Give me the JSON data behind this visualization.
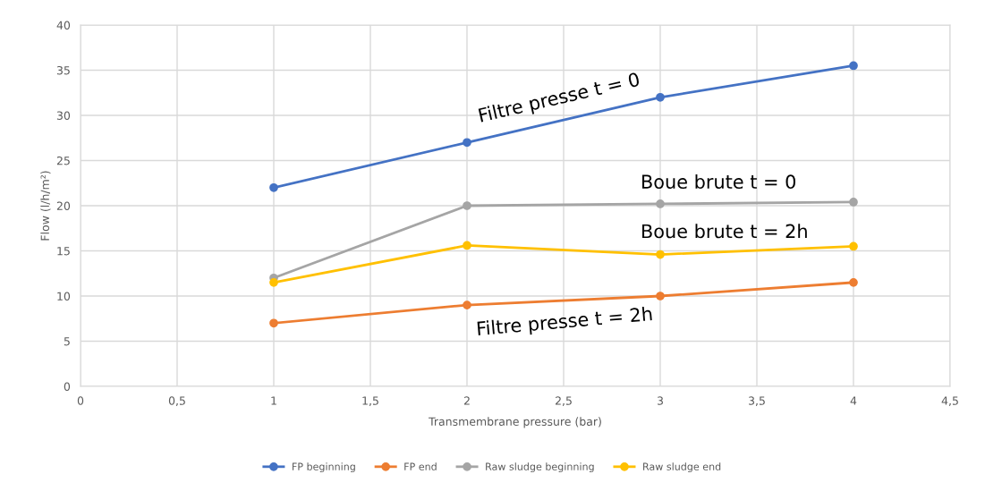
{
  "chart_data": {
    "type": "line",
    "xlabel": "Transmembrane pressure (bar)",
    "ylabel": "Flow (l/h/m²)",
    "x": [
      1,
      2,
      3,
      4
    ],
    "series": [
      {
        "name": "FP beginning",
        "color": "#4472c4",
        "values": [
          22,
          27,
          32,
          35.5
        ]
      },
      {
        "name": "FP end",
        "color": "#ed7d31",
        "values": [
          7,
          9,
          10,
          11.5
        ]
      },
      {
        "name": "Raw sludge beginning",
        "color": "#a5a5a5",
        "values": [
          12,
          20,
          20.2,
          20.4
        ]
      },
      {
        "name": "Raw sludge end",
        "color": "#ffc000",
        "values": [
          11.5,
          15.6,
          14.6,
          15.5
        ]
      }
    ],
    "xlim": [
      0,
      4.5
    ],
    "xticks": [
      0,
      {
        "value": 0.5,
        "label": "0,5"
      },
      1,
      {
        "value": 1.5,
        "label": "1,5"
      },
      2,
      {
        "value": 2.5,
        "label": "2,5"
      },
      3,
      {
        "value": 3.5,
        "label": "3,5"
      },
      4,
      {
        "value": 4.5,
        "label": "4,5"
      }
    ],
    "ylim": [
      0,
      40
    ],
    "yticks": [
      0,
      5,
      10,
      15,
      20,
      25,
      30,
      35,
      40
    ],
    "grid": true,
    "legend": "bottom",
    "marker": "circle",
    "line_style": "solid",
    "annotations": [
      "Filtre presse t = 0",
      "Boue brute t = 0",
      "Boue brute t = 2h",
      "Filtre presse t = 2h"
    ]
  }
}
